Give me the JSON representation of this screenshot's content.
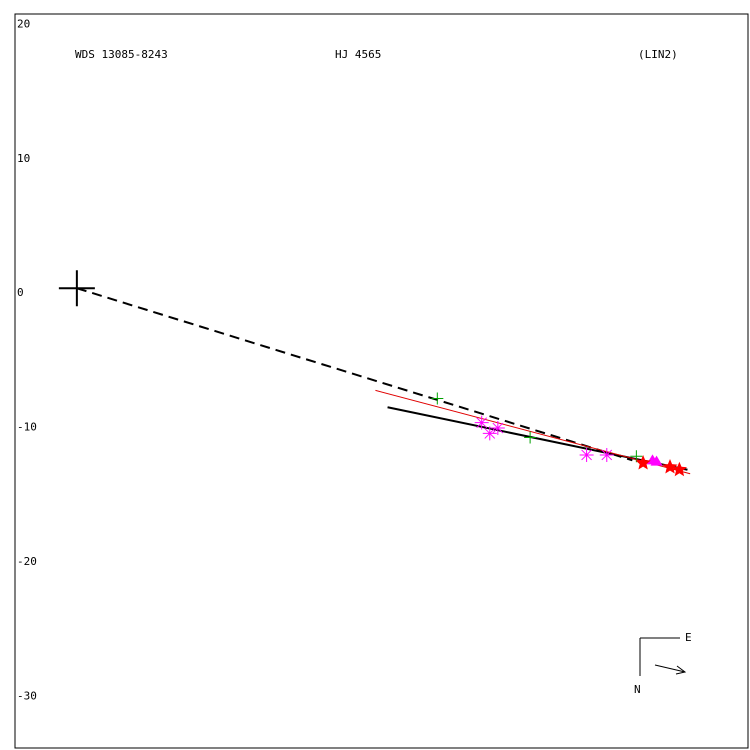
{
  "chart_data": {
    "type": "scatter",
    "labels": [
      "WDS 13085-8243",
      "HJ 4565",
      "(LIN2)"
    ],
    "compass": [
      "E",
      "N"
    ],
    "xlim": [
      -4.6,
      49.9
    ],
    "ylim": [
      -34.2,
      20.4
    ],
    "yticks": [
      20,
      10,
      0,
      -10,
      -20,
      -30
    ],
    "grid": false,
    "series": [
      {
        "marker": "cross",
        "color": "#000000",
        "x": [
          0
        ],
        "values": [
          0
        ]
      },
      {
        "style": "dashed",
        "color": "#000000",
        "x": [
          0,
          41.3
        ],
        "values": [
          0,
          -12.8
        ]
      },
      {
        "style": "solid",
        "color": "#000000",
        "x": [
          23.1,
          45.4
        ],
        "values": [
          -8.85,
          -13.5
        ]
      },
      {
        "style": "thin",
        "color": "#e00000",
        "x": [
          22.2,
          45.6
        ],
        "values": [
          -7.6,
          -13.8
        ]
      },
      {
        "marker": "plus",
        "color": "#00a000",
        "x": [
          26.8,
          33.7,
          41.6
        ],
        "values": [
          -8.2,
          -11.1,
          -12.5
        ]
      },
      {
        "marker": "asterisk",
        "color": "#ff00ff",
        "x": [
          30.1,
          30.7,
          31.3,
          37.9,
          39.4
        ],
        "values": [
          -10.0,
          -10.8,
          -10.4,
          -12.4,
          -12.4
        ]
      },
      {
        "marker": "triangle",
        "color": "#ff00ff",
        "x": [
          42.8,
          43.1
        ],
        "values": [
          -12.8,
          -12.9
        ]
      },
      {
        "marker": "star",
        "color": "#ff0000",
        "x": [
          42.1,
          44.1,
          44.8
        ],
        "values": [
          -13.0,
          -13.3,
          -13.5
        ]
      }
    ]
  }
}
